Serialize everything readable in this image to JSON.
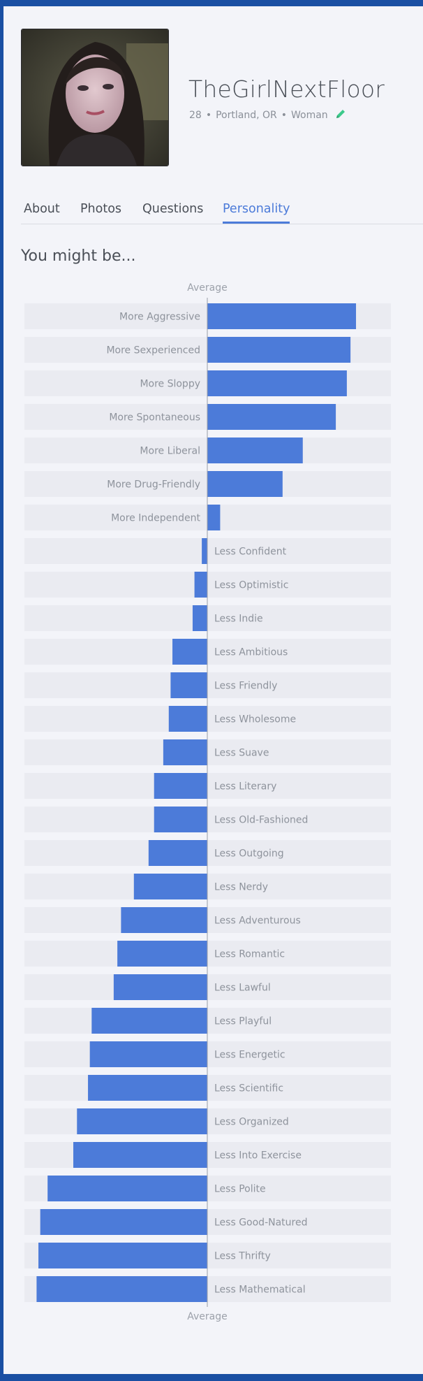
{
  "profile": {
    "username": "TheGirlNextFloor",
    "age": "28",
    "location": "Portland, OR",
    "gender": "Woman",
    "separator": "•"
  },
  "tabs": [
    {
      "label": "About",
      "active": false
    },
    {
      "label": "Photos",
      "active": false
    },
    {
      "label": "Questions",
      "active": false
    },
    {
      "label": "Personality",
      "active": true
    }
  ],
  "personality": {
    "title": "You might be...",
    "axis_label_top": "Average",
    "axis_label_bottom": "Average"
  },
  "colors": {
    "bar": "#4c7bd9",
    "track": "#eaebf1",
    "accent": "#4c7bd9",
    "edit": "#3cc98b"
  },
  "icons": {
    "edit": "pencil-icon"
  },
  "chart_data": {
    "type": "bar",
    "orientation": "horizontal-diverging",
    "xlim": [
      -100,
      100
    ],
    "baseline_label": "Average",
    "categories": [
      "More Aggressive",
      "More Sexperienced",
      "More Sloppy",
      "More Spontaneous",
      "More Liberal",
      "More Drug-Friendly",
      "More Independent",
      "Less Confident",
      "Less Optimistic",
      "Less Indie",
      "Less Ambitious",
      "Less Friendly",
      "Less Wholesome",
      "Less Suave",
      "Less Literary",
      "Less Old-Fashioned",
      "Less Outgoing",
      "Less Nerdy",
      "Less Adventurous",
      "Less Romantic",
      "Less Lawful",
      "Less Playful",
      "Less Energetic",
      "Less Scientific",
      "Less Organized",
      "Less Into Exercise",
      "Less Polite",
      "Less Good-Natured",
      "Less Thrifty",
      "Less Mathematical"
    ],
    "values": [
      81,
      78,
      76,
      70,
      52,
      41,
      7,
      -3,
      -7,
      -8,
      -19,
      -20,
      -21,
      -24,
      -29,
      -29,
      -32,
      -40,
      -47,
      -49,
      -51,
      -63,
      -64,
      -65,
      -71,
      -73,
      -87,
      -91,
      -92,
      -93
    ]
  }
}
